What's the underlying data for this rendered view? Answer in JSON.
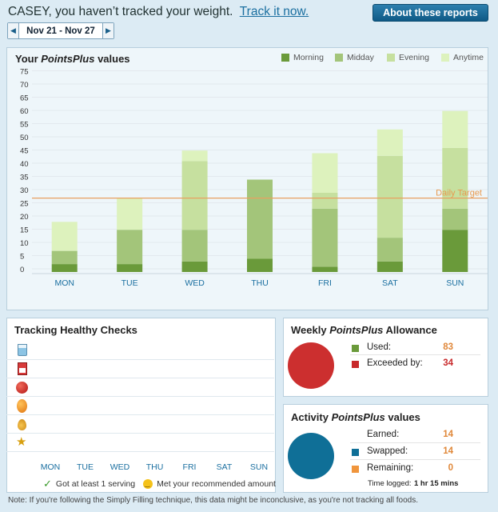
{
  "header": {
    "greeting": "CASEY, you haven’t tracked your weight.",
    "track_link": "Track it now.",
    "about_button": "About these reports",
    "date_range": "Nov 21 - Nov 27"
  },
  "chart_panel": {
    "title_prefix": "Your ",
    "title_italic": "PointsPlus",
    "title_suffix": " values",
    "target_label": "Daily Target"
  },
  "chart_data": {
    "type": "bar",
    "stacked": true,
    "title": "Your PointsPlus values",
    "categories": [
      "MON",
      "TUE",
      "WED",
      "THU",
      "FRI",
      "SAT",
      "SUN"
    ],
    "y_ticks": [
      0,
      5,
      10,
      15,
      20,
      25,
      30,
      35,
      40,
      45,
      50,
      55,
      60,
      65,
      70,
      75
    ],
    "ylim": [
      0,
      77
    ],
    "target": 28,
    "series": [
      {
        "name": "Morning",
        "color": "#6a9a3a",
        "values": [
          3,
          3,
          4,
          5,
          2,
          4,
          16
        ]
      },
      {
        "name": "Midday",
        "color": "#a3c57a",
        "values": [
          5,
          13,
          12,
          30,
          22,
          9,
          8
        ]
      },
      {
        "name": "Evening",
        "color": "#c6e09f",
        "values": [
          0,
          0,
          26,
          0,
          6,
          31,
          23
        ]
      },
      {
        "name": "Anytime",
        "color": "#ddf2bd",
        "values": [
          11,
          12,
          4,
          0,
          15,
          10,
          14
        ]
      }
    ],
    "legend_position": "top-right",
    "grid": true
  },
  "checks_panel": {
    "title": "Tracking Healthy Checks",
    "days": [
      "MON",
      "TUE",
      "WED",
      "THU",
      "FRI",
      "SAT",
      "SUN"
    ],
    "icons": [
      "water-glass-icon",
      "milk-carton-icon",
      "apple-icon",
      "orange-icon",
      "oil-drop-icon",
      "running-man-icon"
    ],
    "legend_check": "Got at least 1 serving",
    "legend_smile": "Met your recommended amount"
  },
  "allowance_panel": {
    "title_prefix": "Weekly ",
    "title_italic": "PointsPlus",
    "title_suffix": " Allowance",
    "rows": [
      {
        "label": "Used:",
        "value": "83",
        "color": "#6a9a3a",
        "value_color": "#e0883a"
      },
      {
        "label": "Exceeded by:",
        "value": "34",
        "color": "#c8292b",
        "value_color": "#c8292b"
      }
    ],
    "circle_color": "#cc2f2f"
  },
  "activity_panel": {
    "title_prefix": "Activity ",
    "title_italic": "PointsPlus",
    "title_suffix": " values",
    "rows": [
      {
        "label": "Earned:",
        "value": "14",
        "color": "",
        "value_color": "#e0883a"
      },
      {
        "label": "Swapped:",
        "value": "14",
        "color": "#0f6f97",
        "value_color": "#e0883a"
      },
      {
        "label": "Remaining:",
        "value": "0",
        "color": "#f0953c",
        "value_color": "#e0883a"
      }
    ],
    "time_label": "Time logged:",
    "time_value": "1 hr 15 mins",
    "circle_color": "#0f6f97"
  },
  "footer_note": "Note: If you're following the Simply Filling technique, this data might be inconclusive, as you're not tracking all foods."
}
